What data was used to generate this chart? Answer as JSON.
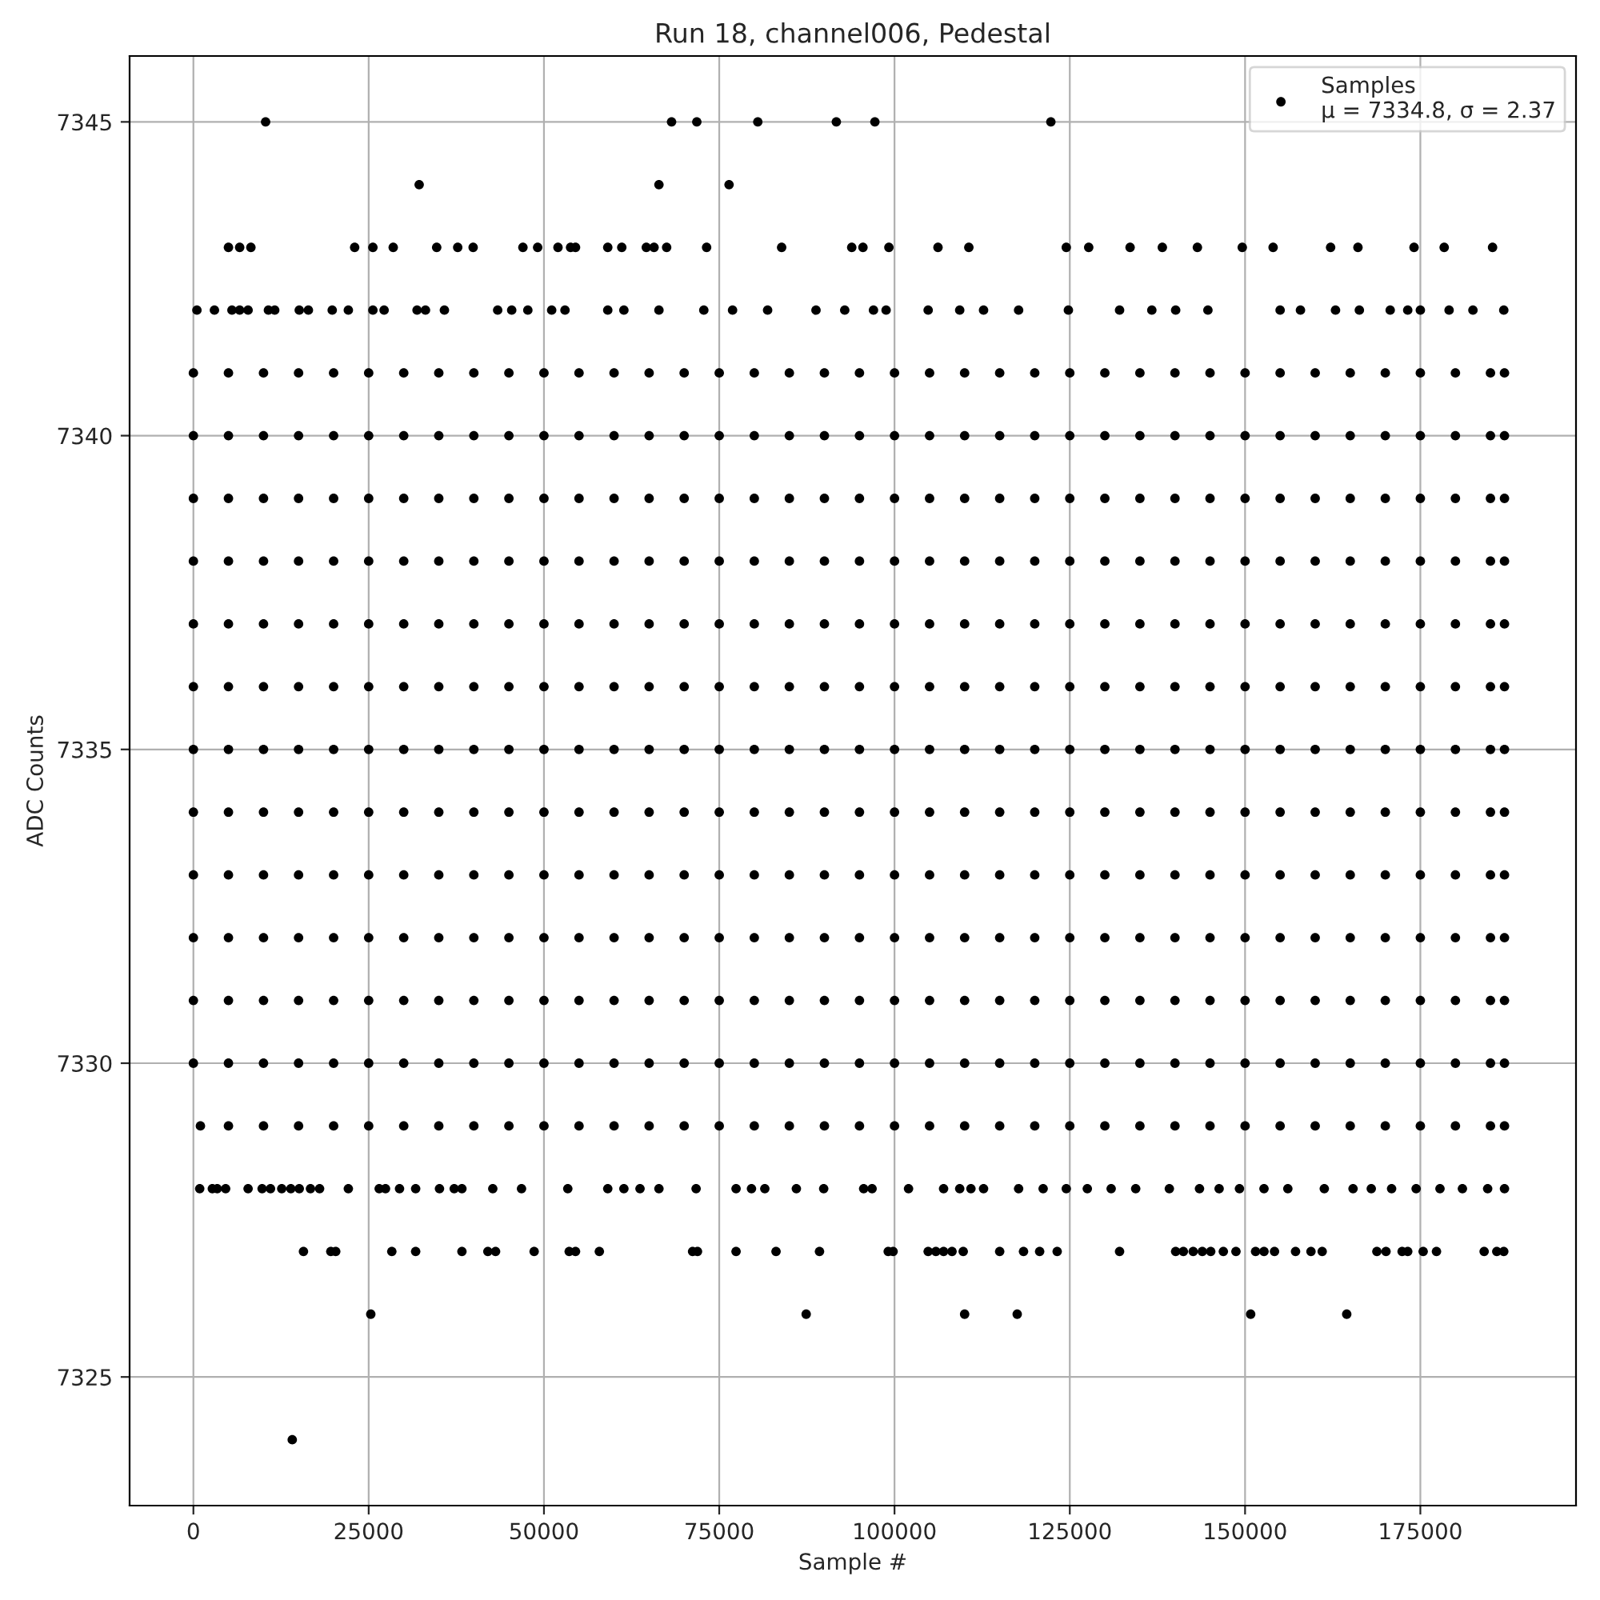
{
  "chart_data": {
    "type": "scatter",
    "title": "Run 18, channel006, Pedestal",
    "xlabel": "Sample #",
    "ylabel": "ADC Counts",
    "annotations": [
      "μ = 7334.8, σ = 2.37"
    ],
    "x": [
      0,
      5000,
      10000,
      15000,
      20000,
      25000,
      30000,
      35000,
      40000,
      45000,
      50000,
      55000,
      60000,
      65000,
      70000,
      75000,
      80000,
      85000,
      90000,
      95000,
      100000,
      105000,
      110000,
      115000,
      120000,
      125000,
      130000,
      135000,
      140000,
      145000,
      150000,
      155000,
      160000,
      165000,
      170000,
      175000,
      180000,
      185000,
      187000
    ],
    "series": [
      {
        "name": "Samples",
        "color": "#000000",
        "values": [
          7341,
          7341,
          7341,
          7341,
          7341,
          7341,
          7341,
          7341,
          7341,
          7341,
          7341,
          7341,
          7341,
          7341,
          7341,
          7341,
          7341,
          7341,
          7341,
          7341,
          7341,
          7341,
          7341,
          7341,
          7341,
          7341,
          7341,
          7341,
          7341,
          7341,
          7341,
          7341,
          7341,
          7341,
          7341,
          7341,
          7341,
          7341,
          7341
        ]
      },
      {
        "color": "#000000",
        "values": [
          7340,
          7340,
          7340,
          7340,
          7340,
          7340,
          7340,
          7340,
          7340,
          7340,
          7340,
          7340,
          7340,
          7340,
          7340,
          7340,
          7340,
          7340,
          7340,
          7340,
          7340,
          7340,
          7340,
          7340,
          7340,
          7340,
          7340,
          7340,
          7340,
          7340,
          7340,
          7340,
          7340,
          7340,
          7340,
          7340,
          7340,
          7340,
          7340
        ]
      },
      {
        "color": "#000000",
        "values": [
          7339,
          7339,
          7339,
          7339,
          7339,
          7339,
          7339,
          7339,
          7339,
          7339,
          7339,
          7339,
          7339,
          7339,
          7339,
          7339,
          7339,
          7339,
          7339,
          7339,
          7339,
          7339,
          7339,
          7339,
          7339,
          7339,
          7339,
          7339,
          7339,
          7339,
          7339,
          7339,
          7339,
          7339,
          7339,
          7339,
          7339,
          7339,
          7339
        ]
      },
      {
        "color": "#000000",
        "values": [
          7338,
          7338,
          7338,
          7338,
          7338,
          7338,
          7338,
          7338,
          7338,
          7338,
          7338,
          7338,
          7338,
          7338,
          7338,
          7338,
          7338,
          7338,
          7338,
          7338,
          7338,
          7338,
          7338,
          7338,
          7338,
          7338,
          7338,
          7338,
          7338,
          7338,
          7338,
          7338,
          7338,
          7338,
          7338,
          7338,
          7338,
          7338,
          7338
        ]
      },
      {
        "color": "#000000",
        "values": [
          7337,
          7337,
          7337,
          7337,
          7337,
          7337,
          7337,
          7337,
          7337,
          7337,
          7337,
          7337,
          7337,
          7337,
          7337,
          7337,
          7337,
          7337,
          7337,
          7337,
          7337,
          7337,
          7337,
          7337,
          7337,
          7337,
          7337,
          7337,
          7337,
          7337,
          7337,
          7337,
          7337,
          7337,
          7337,
          7337,
          7337,
          7337,
          7337
        ]
      },
      {
        "color": "#000000",
        "values": [
          7336,
          7336,
          7336,
          7336,
          7336,
          7336,
          7336,
          7336,
          7336,
          7336,
          7336,
          7336,
          7336,
          7336,
          7336,
          7336,
          7336,
          7336,
          7336,
          7336,
          7336,
          7336,
          7336,
          7336,
          7336,
          7336,
          7336,
          7336,
          7336,
          7336,
          7336,
          7336,
          7336,
          7336,
          7336,
          7336,
          7336,
          7336,
          7336
        ]
      },
      {
        "color": "#000000",
        "values": [
          7335,
          7335,
          7335,
          7335,
          7335,
          7335,
          7335,
          7335,
          7335,
          7335,
          7335,
          7335,
          7335,
          7335,
          7335,
          7335,
          7335,
          7335,
          7335,
          7335,
          7335,
          7335,
          7335,
          7335,
          7335,
          7335,
          7335,
          7335,
          7335,
          7335,
          7335,
          7335,
          7335,
          7335,
          7335,
          7335,
          7335,
          7335,
          7335
        ]
      },
      {
        "color": "#000000",
        "values": [
          7334,
          7334,
          7334,
          7334,
          7334,
          7334,
          7334,
          7334,
          7334,
          7334,
          7334,
          7334,
          7334,
          7334,
          7334,
          7334,
          7334,
          7334,
          7334,
          7334,
          7334,
          7334,
          7334,
          7334,
          7334,
          7334,
          7334,
          7334,
          7334,
          7334,
          7334,
          7334,
          7334,
          7334,
          7334,
          7334,
          7334,
          7334,
          7334
        ]
      },
      {
        "color": "#000000",
        "values": [
          7333,
          7333,
          7333,
          7333,
          7333,
          7333,
          7333,
          7333,
          7333,
          7333,
          7333,
          7333,
          7333,
          7333,
          7333,
          7333,
          7333,
          7333,
          7333,
          7333,
          7333,
          7333,
          7333,
          7333,
          7333,
          7333,
          7333,
          7333,
          7333,
          7333,
          7333,
          7333,
          7333,
          7333,
          7333,
          7333,
          7333,
          7333,
          7333
        ]
      },
      {
        "color": "#000000",
        "values": [
          7332,
          7332,
          7332,
          7332,
          7332,
          7332,
          7332,
          7332,
          7332,
          7332,
          7332,
          7332,
          7332,
          7332,
          7332,
          7332,
          7332,
          7332,
          7332,
          7332,
          7332,
          7332,
          7332,
          7332,
          7332,
          7332,
          7332,
          7332,
          7332,
          7332,
          7332,
          7332,
          7332,
          7332,
          7332,
          7332,
          7332,
          7332,
          7332
        ]
      },
      {
        "color": "#000000",
        "values": [
          7331,
          7331,
          7331,
          7331,
          7331,
          7331,
          7331,
          7331,
          7331,
          7331,
          7331,
          7331,
          7331,
          7331,
          7331,
          7331,
          7331,
          7331,
          7331,
          7331,
          7331,
          7331,
          7331,
          7331,
          7331,
          7331,
          7331,
          7331,
          7331,
          7331,
          7331,
          7331,
          7331,
          7331,
          7331,
          7331,
          7331,
          7331,
          7331
        ]
      },
      {
        "color": "#000000",
        "values": [
          7330,
          7330,
          7330,
          7330,
          7330,
          7330,
          7330,
          7330,
          7330,
          7330,
          7330,
          7330,
          7330,
          7330,
          7330,
          7330,
          7330,
          7330,
          7330,
          7330,
          7330,
          7330,
          7330,
          7330,
          7330,
          7330,
          7330,
          7330,
          7330,
          7330,
          7330,
          7330,
          7330,
          7330,
          7330,
          7330,
          7330,
          7330,
          7330
        ]
      },
      {
        "color": "#000000",
        "x": [
          1000,
          5000,
          10000,
          15000,
          20000,
          25000,
          30000,
          35000,
          40000,
          45000,
          50000,
          55000,
          60000,
          65000,
          70000,
          75000,
          80000,
          85000,
          90000,
          95000,
          100000,
          105000,
          110000,
          115000,
          120000,
          125000,
          130000,
          135000,
          140000,
          145000,
          150000,
          155000,
          160000,
          165000,
          170000,
          175000,
          180000,
          185000,
          187000
        ],
        "values": [
          7329,
          7329,
          7329,
          7329,
          7329,
          7329,
          7329,
          7329,
          7329,
          7329,
          7329,
          7329,
          7329,
          7329,
          7329,
          7329,
          7329,
          7329,
          7329,
          7329,
          7329,
          7329,
          7329,
          7329,
          7329,
          7329,
          7329,
          7329,
          7329,
          7329,
          7329,
          7329,
          7329,
          7329,
          7329,
          7329,
          7329,
          7329,
          7329
        ]
      },
      {
        "color": "#000000",
        "x": [
          10300,
          68200,
          71800,
          80500,
          91700,
          97200,
          122300
        ],
        "values": [
          7345,
          7345,
          7345,
          7345,
          7345,
          7345,
          7345
        ]
      },
      {
        "color": "#000000",
        "x": [
          32200,
          66400,
          76400
        ],
        "values": [
          7344,
          7344,
          7344
        ]
      },
      {
        "color": "#000000",
        "x": [
          5000,
          6600,
          8200,
          23000,
          25600,
          28500,
          34700,
          37700,
          39900,
          47000,
          49100,
          52000,
          53800,
          54500,
          59100,
          61100,
          64600,
          65700,
          67500,
          73200,
          83900,
          93900,
          95500,
          99200,
          106200,
          110600,
          124500,
          127700,
          133600,
          138200,
          143200,
          149600,
          154000,
          162200,
          166100,
          174100,
          178400,
          185300
        ],
        "values": [
          7343,
          7343,
          7343,
          7343,
          7343,
          7343,
          7343,
          7343,
          7343,
          7343,
          7343,
          7343,
          7343,
          7343,
          7343,
          7343,
          7343,
          7343,
          7343,
          7343,
          7343,
          7343,
          7343,
          7343,
          7343,
          7343,
          7343,
          7343,
          7343,
          7343,
          7343,
          7343,
          7343,
          7343,
          7343,
          7343,
          7343,
          7343
        ]
      },
      {
        "color": "#000000",
        "x": [
          500,
          3000,
          5500,
          6600,
          7800,
          10700,
          11600,
          15100,
          16400,
          19800,
          22100,
          25600,
          27200,
          31900,
          33100,
          35800,
          43400,
          45400,
          47700,
          51100,
          53000,
          59100,
          61400,
          66400,
          72800,
          76900,
          81900,
          88800,
          92900,
          97000,
          98800,
          104800,
          109300,
          112700,
          117700,
          124800,
          132100,
          136700,
          140100,
          144700,
          155000,
          157900,
          162900,
          166300,
          170700,
          173200,
          175000,
          179100,
          182500,
          186900
        ],
        "values": [
          7342,
          7342,
          7342,
          7342,
          7342,
          7342,
          7342,
          7342,
          7342,
          7342,
          7342,
          7342,
          7342,
          7342,
          7342,
          7342,
          7342,
          7342,
          7342,
          7342,
          7342,
          7342,
          7342,
          7342,
          7342,
          7342,
          7342,
          7342,
          7342,
          7342,
          7342,
          7342,
          7342,
          7342,
          7342,
          7342,
          7342,
          7342,
          7342,
          7342,
          7342,
          7342,
          7342,
          7342,
          7342,
          7342,
          7342,
          7342,
          7342,
          7342
        ]
      },
      {
        "color": "#000000",
        "x": [
          900,
          2700,
          3400,
          4600,
          7800,
          9800,
          11000,
          12600,
          13900,
          15100,
          16700,
          18000,
          22100,
          26500,
          27400,
          29400,
          31700,
          35100,
          37200,
          38300,
          42700,
          46800,
          53400,
          59100,
          61400,
          63700,
          66400,
          71700,
          77400,
          79600,
          81500,
          86000,
          89900,
          95600,
          96800,
          102000,
          107000,
          109300,
          110900,
          112700,
          117700,
          121200,
          124500,
          127500,
          130900,
          134400,
          139200,
          143500,
          146300,
          149200,
          152700,
          156100,
          161300,
          165400,
          168000,
          170900,
          174400,
          177800,
          181000,
          184600,
          187000
        ],
        "values": [
          7328,
          7328,
          7328,
          7328,
          7328,
          7328,
          7328,
          7328,
          7328,
          7328,
          7328,
          7328,
          7328,
          7328,
          7328,
          7328,
          7328,
          7328,
          7328,
          7328,
          7328,
          7328,
          7328,
          7328,
          7328,
          7328,
          7328,
          7328,
          7328,
          7328,
          7328,
          7328,
          7328,
          7328,
          7328,
          7328,
          7328,
          7328,
          7328,
          7328,
          7328,
          7328,
          7328,
          7328,
          7328,
          7328,
          7328,
          7328,
          7328,
          7328,
          7328,
          7328,
          7328,
          7328,
          7328,
          7328,
          7328,
          7328,
          7328,
          7328,
          7328
        ]
      },
      {
        "color": "#000000",
        "x": [
          15700,
          19600,
          20300,
          28300,
          31700,
          38300,
          42000,
          43100,
          48600,
          53600,
          54500,
          57900,
          71200,
          71900,
          77400,
          83100,
          89300,
          99100,
          99800,
          104800,
          105900,
          107000,
          108200,
          109800,
          115000,
          118400,
          120700,
          123200,
          132100,
          140100,
          141200,
          142600,
          143900,
          145100,
          146900,
          148700,
          151500,
          152700,
          154200,
          157200,
          159400,
          161000,
          168800,
          170100,
          172400,
          173200,
          175400,
          177300,
          184100,
          185900,
          186900
        ],
        "values": [
          7327,
          7327,
          7327,
          7327,
          7327,
          7327,
          7327,
          7327,
          7327,
          7327,
          7327,
          7327,
          7327,
          7327,
          7327,
          7327,
          7327,
          7327,
          7327,
          7327,
          7327,
          7327,
          7327,
          7327,
          7327,
          7327,
          7327,
          7327,
          7327,
          7327,
          7327,
          7327,
          7327,
          7327,
          7327,
          7327,
          7327,
          7327,
          7327,
          7327,
          7327,
          7327,
          7327,
          7327,
          7327,
          7327,
          7327,
          7327,
          7327,
          7327,
          7327
        ]
      },
      {
        "color": "#000000",
        "x": [
          25300,
          87400,
          110000,
          117500,
          150800,
          164500
        ],
        "values": [
          7326,
          7326,
          7326,
          7326,
          7326,
          7326
        ]
      },
      {
        "color": "#000000",
        "x": [
          14100
        ],
        "values": [
          7324
        ]
      }
    ],
    "xlim": [
      -9100,
      197200
    ],
    "ylim": [
      7322.95,
      7346.05
    ],
    "xticks": [
      0,
      25000,
      50000,
      75000,
      100000,
      125000,
      150000,
      175000
    ],
    "yticks": [
      7325,
      7330,
      7335,
      7340,
      7345
    ],
    "grid": true,
    "legend": "top right",
    "marker": "circle"
  }
}
